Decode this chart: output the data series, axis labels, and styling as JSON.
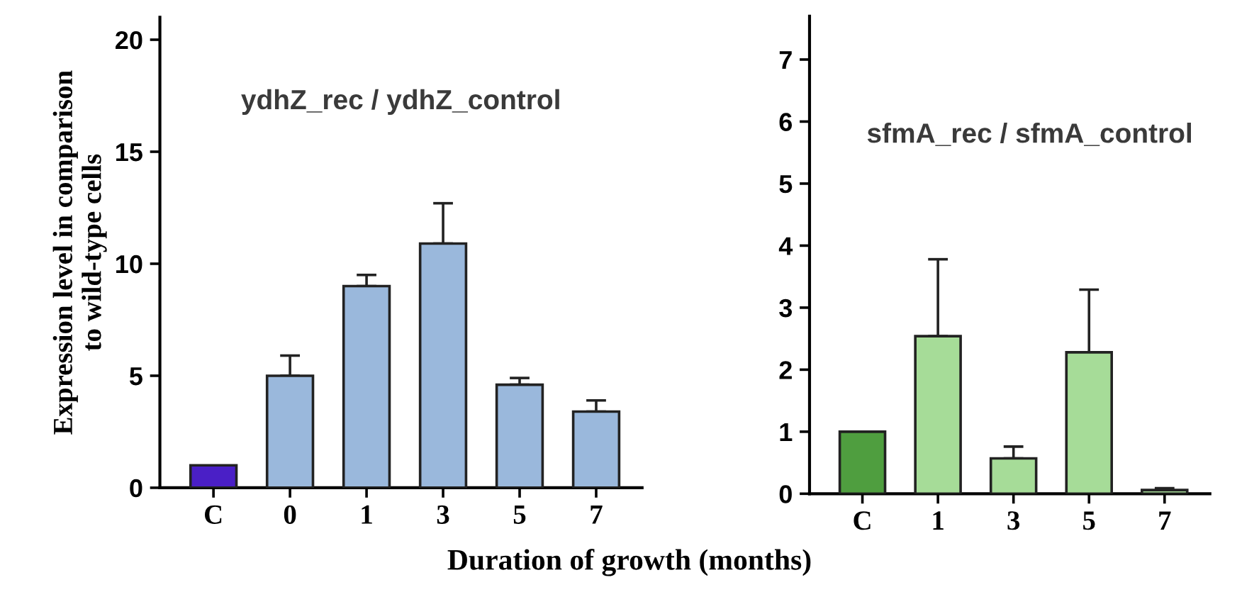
{
  "chart_data": [
    {
      "type": "bar",
      "categories": [
        "C",
        "0",
        "1",
        "3",
        "5",
        "7"
      ],
      "ylabel": "Expression level in comparison\nto wild-type cells",
      "xlabel": "Duration of growth (months)",
      "annotations": [
        "ydhZ_rec / ydhZ_control"
      ],
      "values": [
        1.0,
        5.0,
        9.0,
        10.9,
        4.6,
        3.4
      ],
      "errors": [
        null,
        [
          5.0,
          5.9
        ],
        [
          9.0,
          9.5
        ],
        [
          10.9,
          12.7
        ],
        [
          4.6,
          4.9
        ],
        [
          3.4,
          3.9
        ]
      ],
      "colors": [
        "#4a1fc6",
        "#9ab8dc",
        "#9ab8dc",
        "#9ab8dc",
        "#9ab8dc",
        "#9ab8dc"
      ],
      "ylim": [
        0,
        21
      ],
      "yticks": [
        0,
        5,
        10,
        15,
        20
      ],
      "grid": false,
      "legend": false
    },
    {
      "type": "bar",
      "categories": [
        "C",
        "1",
        "3",
        "5",
        "7"
      ],
      "annotations": [
        "sfmA_rec / sfmA_control"
      ],
      "values": [
        1.0,
        2.54,
        0.57,
        2.28,
        0.06
      ],
      "errors": [
        null,
        [
          2.54,
          3.78
        ],
        [
          0.57,
          0.76
        ],
        [
          2.28,
          3.29
        ],
        [
          0.06,
          0.09
        ]
      ],
      "colors": [
        "#4f9e3f",
        "#a6dc98",
        "#a6dc98",
        "#a6dc98",
        "#a6dc98"
      ],
      "ylim": [
        0,
        7.7
      ],
      "yticks": [
        0,
        1,
        2,
        3,
        4,
        5,
        6,
        7
      ],
      "grid": false,
      "legend": false
    }
  ]
}
